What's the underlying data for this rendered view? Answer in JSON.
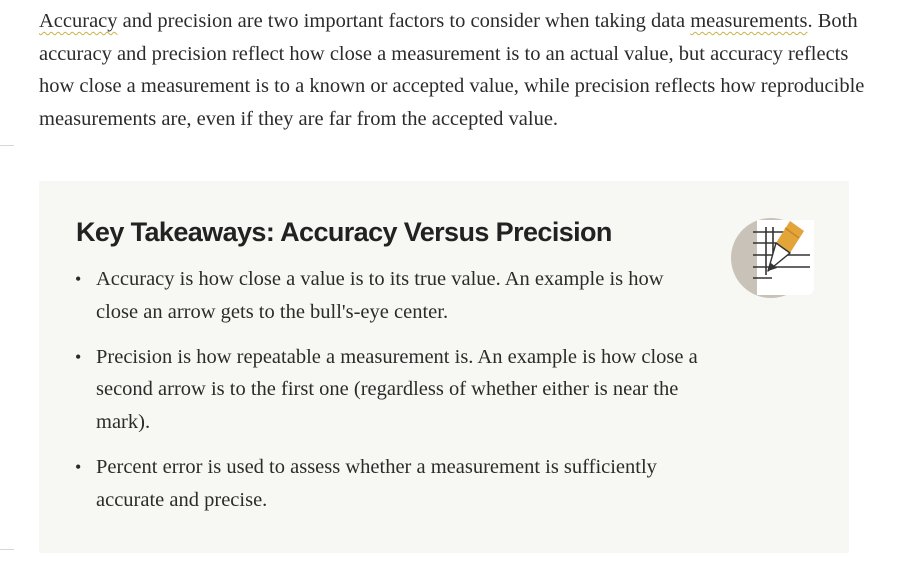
{
  "intro": {
    "link_1": "Accuracy",
    "text_1": " and precision are two important factors to consider when taking data ",
    "link_2": "measurements",
    "text_2": ". Both accuracy and precision reflect how close a measurement is to an actual value, but accuracy reflects how close a measurement is to a known or accepted value, while precision reflects how reproducible measurements are, even if they are far from the accepted value."
  },
  "takeaways": {
    "title": "Key Takeaways: Accuracy Versus Precision",
    "icon": "notepad-pencil-icon",
    "items": [
      "Accuracy is how close a value is to its true value. An example is how close an arrow gets to the bull's-eye center.",
      "Precision is how repeatable a measurement is. An example is how close a second arrow is to the first one (regardless of whether either is near the mark).",
      "Percent error is used to assess whether a measurement is sufficiently accurate and precise."
    ]
  },
  "colors": {
    "text": "#2b2b2b",
    "panel_background": "#f7f7f3",
    "link_underline": "#c9b24a",
    "icon_circle": "#c8c2b8",
    "icon_pencil": "#e3a43a"
  }
}
